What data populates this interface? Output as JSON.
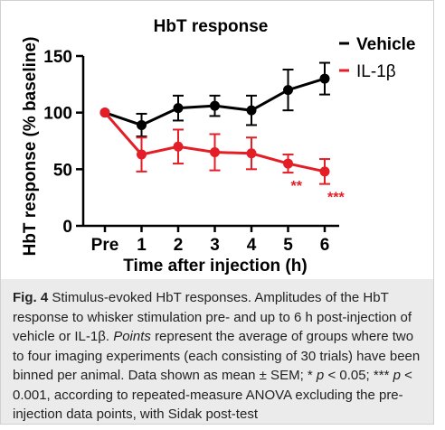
{
  "chart_data": {
    "type": "line",
    "title": "HbT response",
    "xlabel": "Time after injection (h)",
    "ylabel": "HbT response (% baseline)",
    "categories": [
      "Pre",
      "1",
      "2",
      "3",
      "4",
      "5",
      "6"
    ],
    "ylim": [
      0,
      150
    ],
    "yticks": [
      "0",
      "50",
      "100",
      "150"
    ],
    "error_bars": "SEM",
    "legend_position": "top-right",
    "series": [
      {
        "name": "Vehicle",
        "color": "#000000",
        "values": [
          100,
          89,
          104,
          106,
          102,
          120,
          130
        ],
        "errors": [
          0,
          10,
          11,
          9,
          13,
          18,
          14
        ]
      },
      {
        "name": "IL-1β",
        "color": "#e41e26",
        "values": [
          100,
          63,
          70,
          65,
          64,
          55,
          48
        ],
        "errors": [
          0,
          15,
          15,
          16,
          14,
          8,
          11
        ]
      }
    ],
    "annotations": [
      {
        "text": "**",
        "x": "5",
        "series": "IL-1β",
        "color": "#e41e26"
      },
      {
        "text": "***",
        "x": "6",
        "series": "IL-1β",
        "color": "#e41e26"
      }
    ]
  },
  "caption": {
    "label": "Fig. 4",
    "sentence1": "Stimulus-evoked HbT responses. Amplitudes of the HbT response to whisker stimulation pre- and up to 6 h post-injection of vehicle or IL-1β.",
    "points_word": "Points",
    "sentence2": "represent the average of groups where two to four imaging experiments (each consisting of 30 trials) have been binned per animal. Data shown as mean ± SEM; *",
    "p1": "p",
    "t1": "< 0.05; ***",
    "p2": "p",
    "t2": "< 0.001, according to repeated-measure ANOVA excluding the pre-injection data points, with Sidak post-test"
  }
}
